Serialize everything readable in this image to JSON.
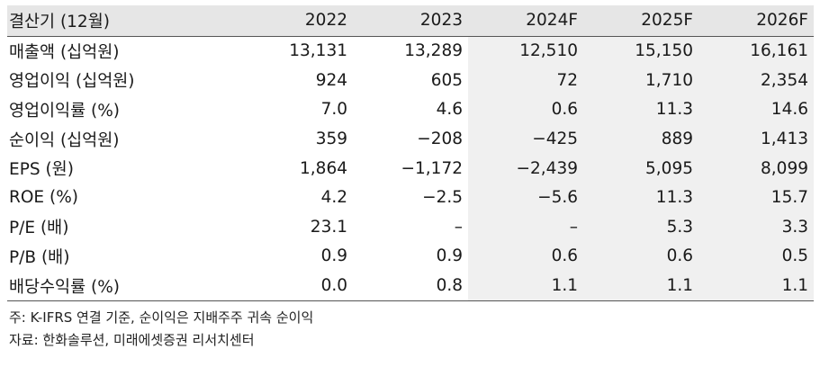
{
  "table": {
    "headers": [
      "결산기 (12월)",
      "2022",
      "2023",
      "2024F",
      "2025F",
      "2026F"
    ],
    "rows": [
      {
        "label": "매출액 (십억원)",
        "values": [
          "13,131",
          "13,289",
          "12,510",
          "15,150",
          "16,161"
        ]
      },
      {
        "label": "영업이익 (십억원)",
        "values": [
          "924",
          "605",
          "72",
          "1,710",
          "2,354"
        ]
      },
      {
        "label": "영업이익률 (%)",
        "values": [
          "7.0",
          "4.6",
          "0.6",
          "11.3",
          "14.6"
        ]
      },
      {
        "label": "순이익 (십억원)",
        "values": [
          "359",
          "−208",
          "−425",
          "889",
          "1,413"
        ]
      },
      {
        "label": "EPS (원)",
        "values": [
          "1,864",
          "−1,172",
          "−2,439",
          "5,095",
          "8,099"
        ]
      },
      {
        "label": "ROE (%)",
        "values": [
          "4.2",
          "−2.5",
          "−5.6",
          "11.3",
          "15.7"
        ]
      },
      {
        "label": "P/E (배)",
        "values": [
          "23.1",
          "–",
          "–",
          "5.3",
          "3.3"
        ]
      },
      {
        "label": "P/B (배)",
        "values": [
          "0.9",
          "0.9",
          "0.6",
          "0.6",
          "0.5"
        ]
      },
      {
        "label": "배당수익률 (%)",
        "values": [
          "0.0",
          "0.8",
          "1.1",
          "1.1",
          "1.1"
        ]
      }
    ]
  },
  "notes": {
    "note": "주: K-IFRS 연결 기준, 순이익은 지배주주 귀속 순이익",
    "source": "자료: 한화솔루션, 미래에셋증권 리서치센터"
  },
  "colors": {
    "header_bg": "#e6e6e6",
    "forecast_bg": "#f0f0f0",
    "rule": "#555555"
  }
}
